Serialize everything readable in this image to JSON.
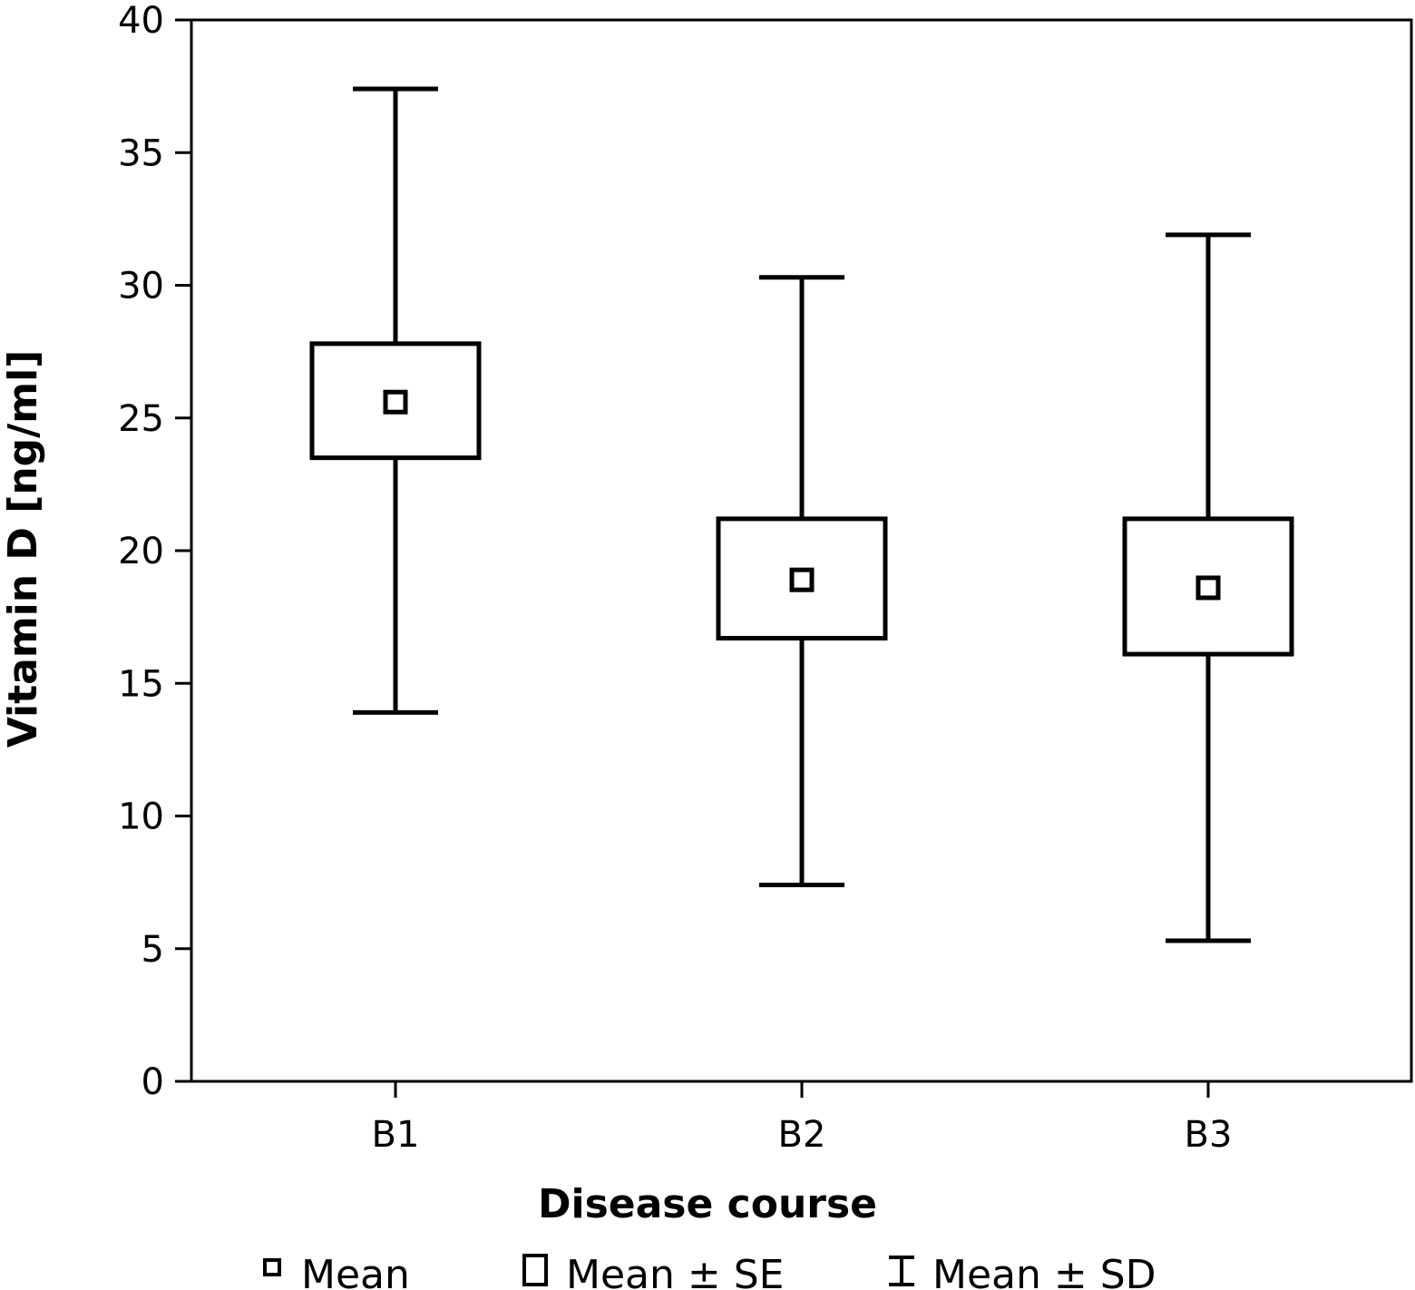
{
  "chart_data": {
    "type": "box",
    "categories": [
      "B1",
      "B2",
      "B3"
    ],
    "mean": [
      25.6,
      18.9,
      18.6
    ],
    "se_low": [
      23.5,
      16.7,
      16.1
    ],
    "se_high": [
      27.8,
      21.2,
      21.2
    ],
    "sd_low": [
      13.9,
      7.4,
      5.3
    ],
    "sd_high": [
      37.4,
      30.3,
      31.9
    ],
    "xlabel": "Disease course",
    "ylabel": "Vitamin D [ng/ml]",
    "ylim": [
      0,
      40
    ],
    "yticks": [
      "0",
      "5",
      "10",
      "15",
      "20",
      "25",
      "30",
      "35",
      "40"
    ],
    "grid": false,
    "legend": {
      "placement": "bottom",
      "items": [
        {
          "symbol": "mean-marker",
          "label": "Mean"
        },
        {
          "symbol": "se-box",
          "label": "Mean ± SE"
        },
        {
          "symbol": "sd-whisker",
          "label": "Mean ± SD"
        }
      ]
    }
  }
}
